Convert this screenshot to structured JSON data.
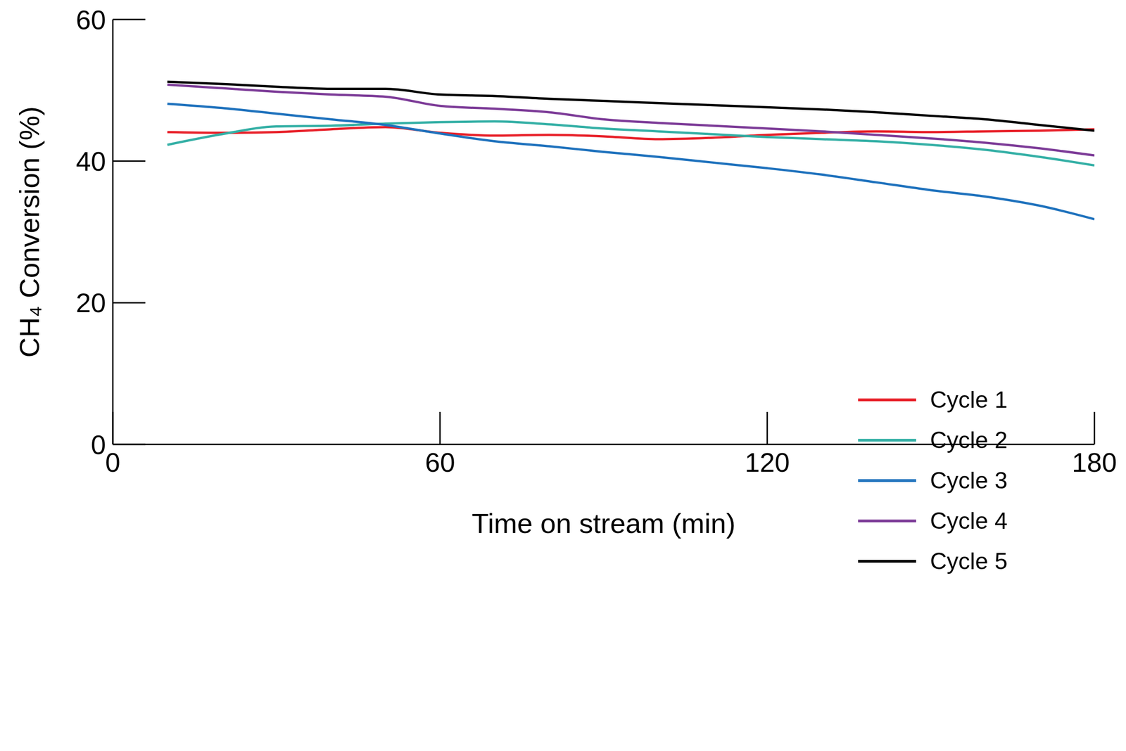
{
  "chart_data": {
    "type": "line",
    "x_label": "Time on stream (min)",
    "y_label": "CH₄ Conversion (%)",
    "x": [
      10,
      20,
      30,
      40,
      50,
      60,
      70,
      80,
      90,
      100,
      110,
      120,
      130,
      140,
      150,
      160,
      170,
      180
    ],
    "series": [
      {
        "name": "Cycle 1",
        "color": "#e8212a",
        "values": [
          44.1,
          44.0,
          44.1,
          44.5,
          44.8,
          44.0,
          43.6,
          43.7,
          43.5,
          43.1,
          43.3,
          43.7,
          44.0,
          44.2,
          44.1,
          44.2,
          44.3,
          44.5
        ]
      },
      {
        "name": "Cycle 2",
        "color": "#35b0a6",
        "values": [
          42.3,
          43.8,
          44.9,
          45.0,
          45.3,
          45.5,
          45.6,
          45.2,
          44.6,
          44.2,
          43.8,
          43.4,
          43.1,
          42.8,
          42.3,
          41.6,
          40.6,
          39.4
        ]
      },
      {
        "name": "Cycle 3",
        "color": "#1f72bd",
        "values": [
          48.1,
          47.5,
          46.7,
          45.9,
          45.1,
          43.9,
          42.8,
          42.1,
          41.3,
          40.6,
          39.8,
          39.0,
          38.1,
          37.0,
          35.9,
          35.0,
          33.7,
          31.8
        ]
      },
      {
        "name": "Cycle 4",
        "color": "#7d3c98",
        "values": [
          50.8,
          50.3,
          49.8,
          49.4,
          49.1,
          47.8,
          47.4,
          46.9,
          45.9,
          45.4,
          45.0,
          44.6,
          44.2,
          43.7,
          43.2,
          42.6,
          41.8,
          40.8
        ]
      },
      {
        "name": "Cycle 5",
        "color": "#000000",
        "values": [
          51.2,
          50.9,
          50.5,
          50.2,
          50.2,
          49.4,
          49.2,
          48.8,
          48.5,
          48.2,
          47.9,
          47.6,
          47.3,
          46.9,
          46.4,
          45.9,
          45.1,
          44.3
        ]
      }
    ],
    "xlim": [
      0,
      180
    ],
    "xticks": [
      0,
      60,
      120,
      180
    ],
    "ylim": [
      0,
      60
    ],
    "yticks": [
      0,
      20,
      40,
      60
    ],
    "grid": false,
    "legend": "lower right"
  }
}
